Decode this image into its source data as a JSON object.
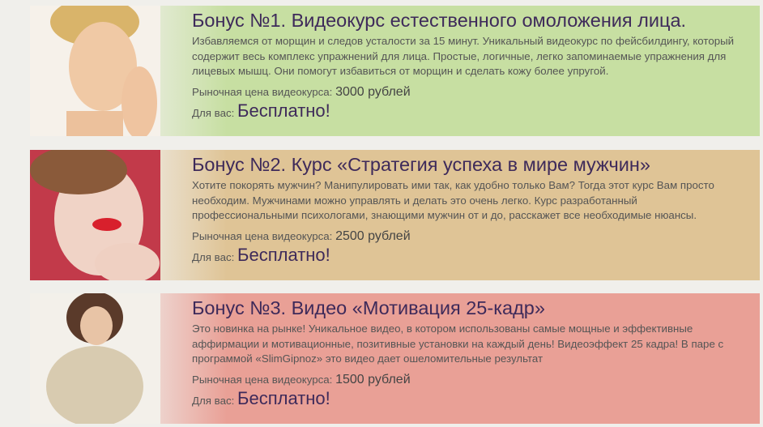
{
  "bonuses": [
    {
      "title": "Бонус №1. Видеокурс естественного омоложения лица.",
      "description": "Избавляемся от морщин и следов усталости за 15 минут. Уникальный видеокурс по фейсбилдингу, который содержит весь комплекс упражнений для лица. Простые, логичные, легко запоминаемые упражнения для лицевых мышц. Они помогут избавиться от морщин и сделать кожу более упругой.",
      "price_label": "Рыночная цена видеокурса:",
      "price": "3000 рублей",
      "for_you_label": "Для вас:",
      "for_you": "Бесплатно!",
      "color": "#c7dfa2"
    },
    {
      "title": "Бонус №2. Курс «Стратегия успеха в мире мужчин»",
      "description": "Хотите покорять мужчин? Манипулировать ими так, как удобно только Вам? Тогда этот курс Вам просто необходим. Мужчинами можно управлять и делать это очень легко. Курс разработанный профессиональными психологами, знающими мужчин от и до, расскажет все необходимые нюансы.",
      "price_label": "Рыночная цена видеокурса:",
      "price": "2500 рублей",
      "for_you_label": "Для вас:",
      "for_you": "Бесплатно!",
      "color": "#dfc496"
    },
    {
      "title": "Бонус №3. Видео «Мотивация 25-кадр»",
      "description": "Это новинка на рынке! Уникальное видео, в котором использованы самые мощные и эффективные аффирмации и мотивационные, позитивные установки на каждый день! Видеоэффект 25 кадра! В паре с программой «SlimGipnoz» это видео дает ошеломительные результат",
      "price_label": "Рыночная цена видеокурса:",
      "price": "1500 рублей",
      "for_you_label": "Для вас:",
      "for_you": "Бесплатно!",
      "color": "#e9a096"
    }
  ]
}
